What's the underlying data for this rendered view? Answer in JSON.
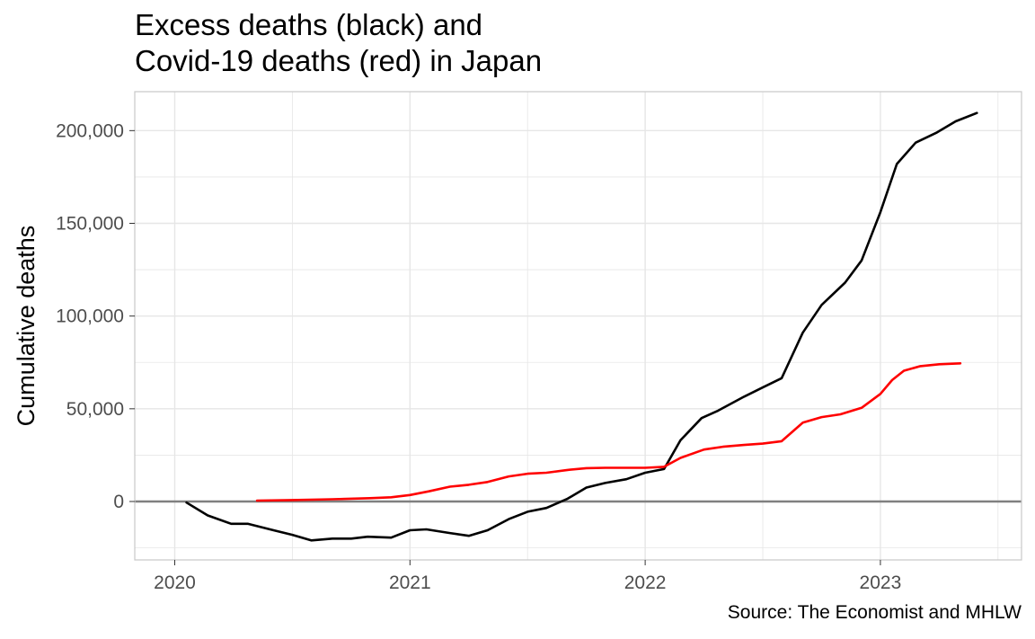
{
  "title_lines": [
    "Excess deaths (black) and",
    "Covid-19 deaths (red) in Japan"
  ],
  "caption": "Source: The Economist and MHLW",
  "colors": {
    "excess": "#000000",
    "covid": "#ff0000",
    "grid": "#e6e6e6",
    "zero_line": "#808080",
    "panel_border": "#c8c8c8",
    "tick_text": "#4d4d4d"
  },
  "chart_data": {
    "type": "line",
    "title": "Excess deaths (black) and Covid-19 deaths (red) in Japan",
    "xlabel": "",
    "ylabel": "Cumulative deaths",
    "xlim": [
      2019.83,
      2023.6
    ],
    "ylim": [
      -31500,
      221000
    ],
    "x_ticks": [
      2020,
      2021,
      2022,
      2023
    ],
    "x_tick_labels": [
      "2020",
      "2021",
      "2022",
      "2023"
    ],
    "y_ticks": [
      0,
      50000,
      100000,
      150000,
      200000
    ],
    "y_tick_labels": [
      "0",
      "50,000",
      "100,000",
      "150,000",
      "200,000"
    ],
    "hline": 0,
    "grid": true,
    "series": [
      {
        "color": "black",
        "x": [
          2020.05,
          2020.14,
          2020.24,
          2020.31,
          2020.42,
          2020.5,
          2020.58,
          2020.67,
          2020.75,
          2020.82,
          2020.92,
          2021.0,
          2021.07,
          2021.17,
          2021.25,
          2021.33,
          2021.42,
          2021.5,
          2021.58,
          2021.67,
          2021.75,
          2021.83,
          2021.92,
          2022.0,
          2022.08,
          2022.15,
          2022.24,
          2022.31,
          2022.42,
          2022.5,
          2022.58,
          2022.67,
          2022.75,
          2022.85,
          2022.92,
          2023.0,
          2023.07,
          2023.15,
          2023.24,
          2023.32,
          2023.41
        ],
        "y": [
          -600,
          -7500,
          -12000,
          -12000,
          -15500,
          -18000,
          -21000,
          -20000,
          -20000,
          -19000,
          -19500,
          -15500,
          -15000,
          -17000,
          -18500,
          -15500,
          -9500,
          -5500,
          -3500,
          1500,
          7500,
          10000,
          12000,
          15500,
          17500,
          33000,
          45000,
          49000,
          56500,
          61500,
          66500,
          91000,
          106000,
          118000,
          130000,
          156000,
          182000,
          193500,
          199000,
          205000,
          209500
        ]
      },
      {
        "color": "red",
        "x": [
          2020.35,
          2020.5,
          2020.67,
          2020.83,
          2020.92,
          2021.0,
          2021.08,
          2021.17,
          2021.25,
          2021.33,
          2021.42,
          2021.5,
          2021.58,
          2021.67,
          2021.75,
          2021.83,
          2021.92,
          2022.0,
          2022.08,
          2022.15,
          2022.25,
          2022.33,
          2022.42,
          2022.5,
          2022.58,
          2022.67,
          2022.75,
          2022.83,
          2022.92,
          2023.0,
          2023.05,
          2023.1,
          2023.17,
          2023.25,
          2023.34
        ],
        "y": [
          500,
          800,
          1200,
          1800,
          2300,
          3500,
          5500,
          8000,
          9000,
          10500,
          13500,
          15000,
          15500,
          17000,
          18000,
          18200,
          18200,
          18200,
          18700,
          23500,
          28000,
          29500,
          30500,
          31200,
          32500,
          42500,
          45500,
          47000,
          50500,
          58000,
          65500,
          70500,
          73000,
          74000,
          74500
        ]
      }
    ]
  }
}
